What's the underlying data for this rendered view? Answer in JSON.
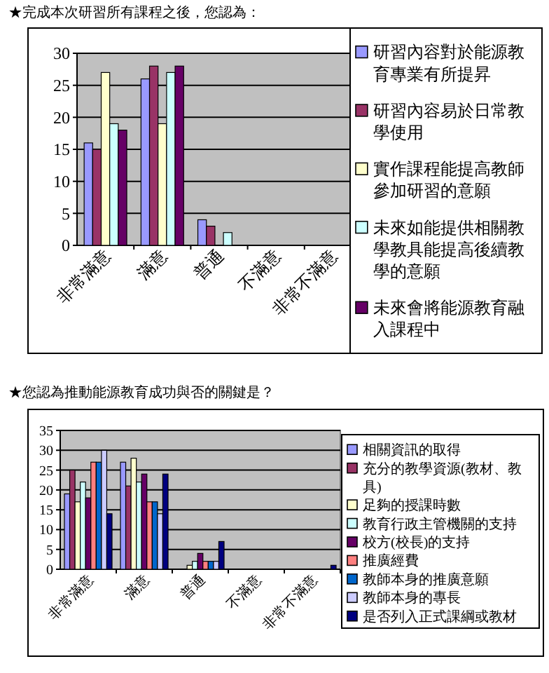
{
  "chart_data": [
    {
      "type": "bar",
      "title": "★完成本次研習所有課程之後，您認為：",
      "categories": [
        "非常滿意",
        "滿意",
        "普通",
        "不滿意",
        "非常不滿意"
      ],
      "series": [
        {
          "name": "研習內容對於能源教育專業有所提昇",
          "color": "#9999ff",
          "values": [
            16,
            26,
            4,
            0,
            0
          ]
        },
        {
          "name": "研習內容易於日常教學使用",
          "color": "#993366",
          "values": [
            15,
            28,
            3,
            0,
            0
          ]
        },
        {
          "name": "實作課程能提高教師參加研習的意願",
          "color": "#ffffcc",
          "values": [
            27,
            19,
            0,
            0,
            0
          ]
        },
        {
          "name": "未來如能提供相關教學教具能提高後續教學的意願",
          "color": "#ccffff",
          "values": [
            19,
            27,
            2,
            0,
            0
          ]
        },
        {
          "name": "未來會將能源教育融入課程中",
          "color": "#660066",
          "values": [
            18,
            28,
            0,
            0,
            0
          ]
        }
      ],
      "ylim": [
        0,
        30
      ],
      "yticks": [
        0,
        5,
        10,
        15,
        20,
        25,
        30
      ],
      "grid": "y",
      "legend": "right"
    },
    {
      "type": "bar",
      "title": "★您認為推動能源教育成功與否的關鍵是？",
      "categories": [
        "非常滿意",
        "滿意",
        "普通",
        "不滿意",
        "非常不滿意"
      ],
      "series": [
        {
          "name": "相關資訊的取得",
          "color": "#9999ff",
          "values": [
            19,
            27,
            0,
            0,
            0
          ]
        },
        {
          "name": "充分的教學資源(教材、教具)",
          "color": "#993366",
          "values": [
            25,
            21,
            0,
            0,
            0
          ]
        },
        {
          "name": "足夠的授課時數",
          "color": "#ffffcc",
          "values": [
            17,
            28,
            1,
            0,
            0
          ]
        },
        {
          "name": "教育行政主管機關的支持",
          "color": "#ccffff",
          "values": [
            22,
            22,
            2,
            0,
            0
          ]
        },
        {
          "name": "校方(校長)的支持",
          "color": "#660066",
          "values": [
            18,
            24,
            4,
            0,
            0
          ]
        },
        {
          "name": "推廣經費",
          "color": "#ff8080",
          "values": [
            27,
            17,
            2,
            0,
            0
          ]
        },
        {
          "name": "教師本身的推廣意願",
          "color": "#0066cc",
          "values": [
            27,
            17,
            2,
            0,
            0
          ]
        },
        {
          "name": "教師本身的專長",
          "color": "#ccccff",
          "values": [
            30,
            14,
            2,
            0,
            0
          ]
        },
        {
          "name": "是否列入正式課綱或教材",
          "color": "#000080",
          "values": [
            14,
            24,
            7,
            0,
            1
          ]
        }
      ],
      "ylim": [
        0,
        35
      ],
      "yticks": [
        0,
        5,
        10,
        15,
        20,
        25,
        30,
        35
      ],
      "grid": "y",
      "legend": "right"
    }
  ]
}
